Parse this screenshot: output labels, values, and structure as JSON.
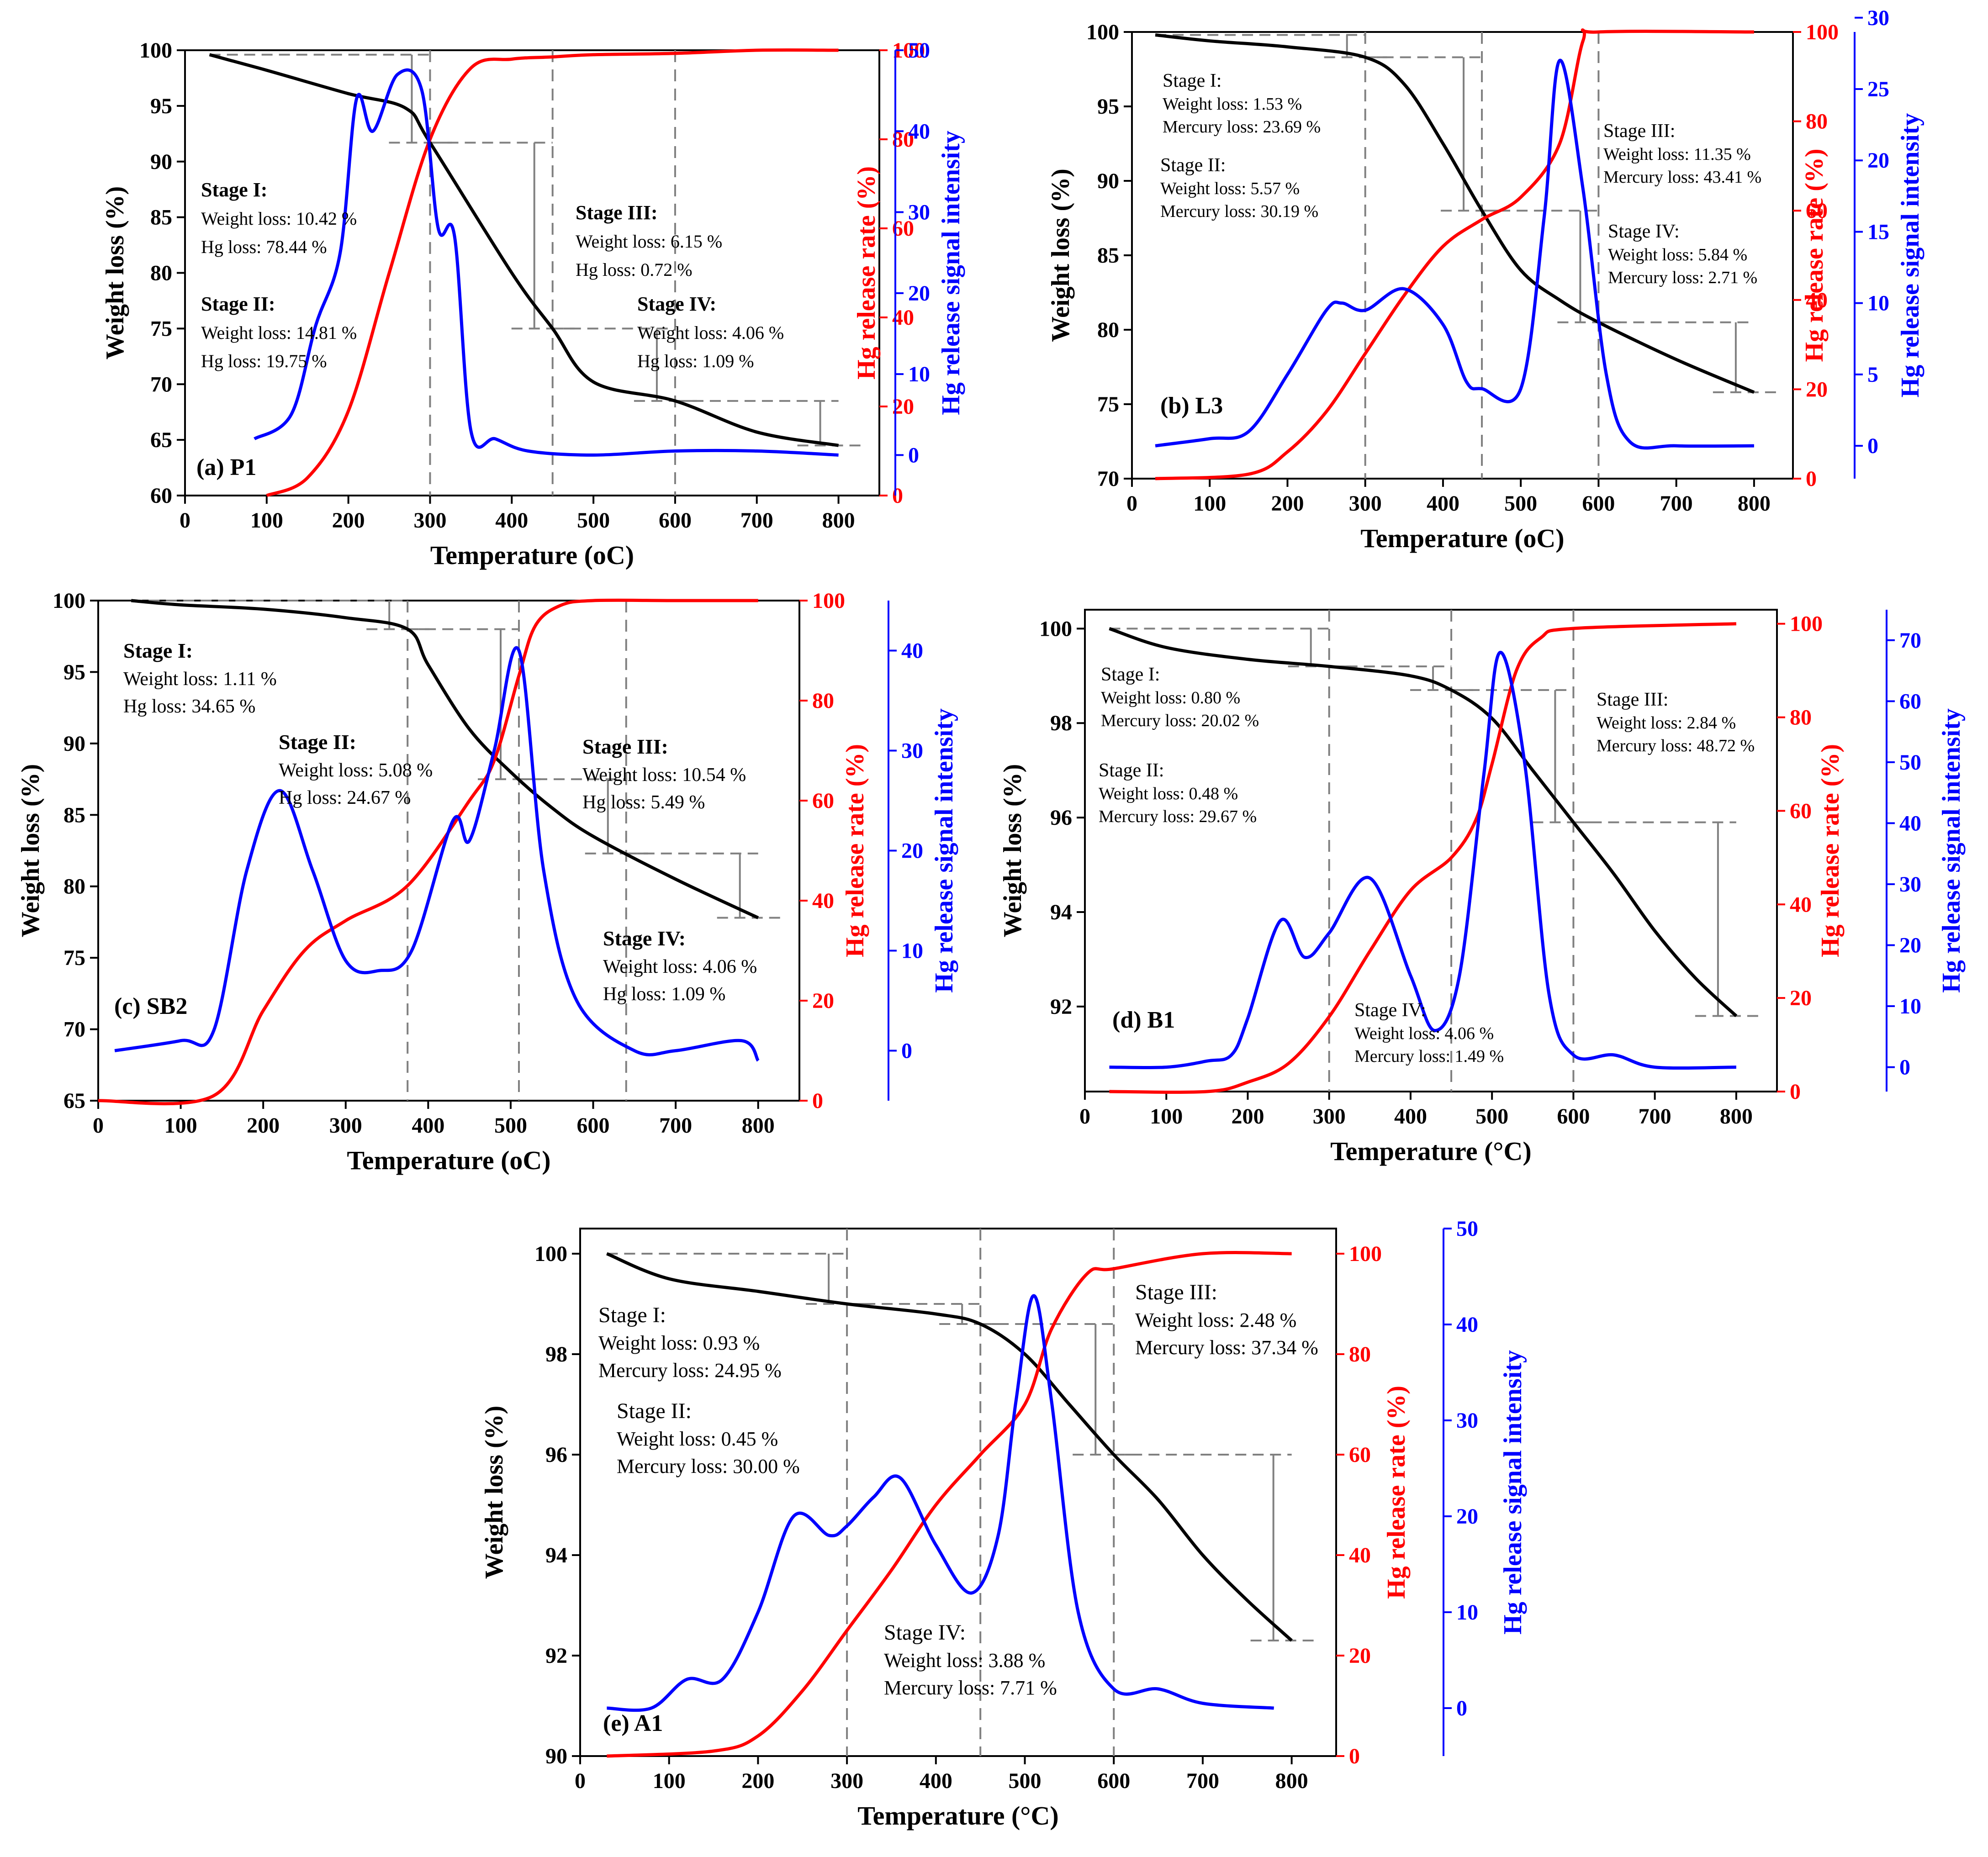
{
  "colors": {
    "weight": "#000000",
    "release": "#ff0000",
    "signal": "#0000ff",
    "guide": "#808080"
  },
  "common": {
    "xlabel": "Temperature (°C)",
    "ylabel_left": "Weight loss (%)",
    "ylabel_right1": "Hg release rate (%)",
    "ylabel_right2": "Hg release signal intensity"
  },
  "chart_data": [
    {
      "id": "P1",
      "type": "line",
      "panel_label": "(a) P1",
      "title": "",
      "xlabel": "Temperature (oC)",
      "xlim": [
        0,
        850
      ],
      "xticks": [
        0,
        100,
        200,
        300,
        400,
        500,
        600,
        700,
        800
      ],
      "ylim_weight": [
        60,
        100
      ],
      "yticks_weight": [
        60,
        65,
        70,
        75,
        80,
        85,
        90,
        95,
        100
      ],
      "ylim_release": [
        0,
        100
      ],
      "yticks_release": [
        0,
        20,
        40,
        60,
        80,
        100
      ],
      "ylim_signal": [
        -5,
        50
      ],
      "yticks_signal": [
        0,
        10,
        20,
        30,
        40,
        50
      ],
      "stage_boundaries": [
        300,
        450,
        600
      ],
      "series": [
        {
          "name": "Weight loss",
          "axis": "weight",
          "x": [
            30,
            100,
            200,
            270,
            300,
            400,
            450,
            500,
            600,
            700,
            800
          ],
          "y": [
            99.6,
            98.2,
            96.1,
            94.8,
            91.7,
            80.0,
            75.0,
            70.2,
            68.5,
            65.7,
            64.5
          ]
        },
        {
          "name": "Hg release rate",
          "axis": "release",
          "x": [
            100,
            150,
            200,
            250,
            300,
            350,
            400,
            450,
            500,
            600,
            700,
            800
          ],
          "y": [
            0,
            4,
            19,
            50,
            80,
            96,
            98,
            98.5,
            99,
            99.3,
            100,
            100
          ]
        },
        {
          "name": "Hg release signal",
          "axis": "signal",
          "x": [
            85,
            130,
            160,
            190,
            210,
            230,
            260,
            290,
            310,
            330,
            350,
            380,
            420,
            500,
            600,
            700,
            800
          ],
          "y": [
            2,
            5,
            16,
            25,
            44,
            40,
            47,
            45,
            28,
            27,
            3,
            2,
            0.5,
            0,
            0.5,
            0.5,
            0
          ]
        }
      ],
      "annotations": [
        {
          "lines": [
            "Stage I:",
            "Weight loss: 10.42 %",
            "Hg loss: 78.44 %"
          ]
        },
        {
          "lines": [
            "Stage II:",
            "Weight loss: 14.81 %",
            "Hg loss: 19.75 %"
          ]
        },
        {
          "lines": [
            "Stage III:",
            "Weight loss: 6.15 %",
            "Hg loss: 0.72 %"
          ]
        },
        {
          "lines": [
            "Stage IV:",
            "Weight loss: 4.06 %",
            "Hg loss: 1.09 %"
          ]
        }
      ]
    },
    {
      "id": "L3",
      "type": "line",
      "panel_label": "(b) L3",
      "title": "",
      "xlabel": "Temperature (oC)",
      "xlim": [
        0,
        850
      ],
      "xticks": [
        0,
        100,
        200,
        300,
        400,
        500,
        600,
        700,
        800
      ],
      "ylim_weight": [
        70,
        100
      ],
      "yticks_weight": [
        70,
        75,
        80,
        85,
        90,
        95,
        100
      ],
      "ylim_release": [
        0,
        100
      ],
      "yticks_release": [
        0,
        20,
        40,
        60,
        80,
        100
      ],
      "ylim_signal": [
        -2.3,
        29
      ],
      "yticks_signal": [
        0,
        5,
        10,
        15,
        20,
        25,
        30
      ],
      "stage_boundaries": [
        300,
        450,
        600
      ],
      "series": [
        {
          "name": "Weight loss",
          "axis": "weight",
          "x": [
            30,
            100,
            200,
            300,
            350,
            400,
            450,
            500,
            550,
            600,
            700,
            800
          ],
          "y": [
            99.8,
            99.4,
            99.0,
            98.3,
            96.5,
            92.5,
            88.0,
            84.0,
            82.0,
            80.5,
            78.0,
            75.8
          ]
        },
        {
          "name": "Hg release rate",
          "axis": "release",
          "x": [
            30,
            150,
            200,
            250,
            300,
            350,
            400,
            450,
            500,
            550,
            580,
            600,
            800
          ],
          "y": [
            0,
            1,
            6,
            15,
            28,
            41,
            52,
            58,
            63,
            75,
            98,
            100,
            100
          ]
        },
        {
          "name": "Hg release signal",
          "axis": "signal",
          "x": [
            30,
            100,
            150,
            200,
            250,
            270,
            300,
            350,
            400,
            430,
            450,
            500,
            530,
            550,
            580,
            610,
            640,
            700,
            800
          ],
          "y": [
            0,
            0.5,
            1,
            5,
            9.5,
            10,
            9.5,
            11,
            8.5,
            4.5,
            4,
            4,
            16,
            27,
            18,
            5,
            0.3,
            0,
            0
          ]
        }
      ],
      "annotations": [
        {
          "lines": [
            "Stage I:",
            "Weight loss: 1.53 %",
            "Mercury loss: 23.69 %"
          ]
        },
        {
          "lines": [
            "Stage II:",
            "Weight loss: 5.57 %",
            "Mercury loss: 30.19 %"
          ]
        },
        {
          "lines": [
            "Stage III:",
            "Weight loss: 11.35 %",
            "Mercury loss: 43.41 %"
          ]
        },
        {
          "lines": [
            "Stage IV:",
            "Weight loss: 5.84 %",
            "Mercury loss: 2.71 %"
          ]
        }
      ]
    },
    {
      "id": "SB2",
      "type": "line",
      "panel_label": "(c) SB2",
      "title": "",
      "xlabel": "Temperature (oC)",
      "xlim": [
        0,
        850
      ],
      "xticks": [
        0,
        100,
        200,
        300,
        400,
        500,
        600,
        700,
        800
      ],
      "ylim_weight": [
        65,
        100
      ],
      "yticks_weight": [
        65,
        70,
        75,
        80,
        85,
        90,
        95,
        100
      ],
      "ylim_release": [
        0,
        100
      ],
      "yticks_release": [
        0,
        20,
        40,
        60,
        80,
        100
      ],
      "ylim_signal": [
        -5,
        45
      ],
      "yticks_signal": [
        0,
        10,
        20,
        30,
        40
      ],
      "stage_boundaries": [
        375,
        510,
        640
      ],
      "series": [
        {
          "name": "Weight loss",
          "axis": "weight",
          "x": [
            40,
            100,
            200,
            300,
            375,
            400,
            450,
            500,
            550,
            600,
            700,
            800
          ],
          "y": [
            100,
            99.7,
            99.4,
            98.8,
            98.0,
            95.5,
            91.0,
            88.0,
            85.5,
            83.5,
            80.5,
            77.8
          ]
        },
        {
          "name": "Hg release rate",
          "axis": "release",
          "x": [
            0,
            140,
            200,
            250,
            300,
            375,
            450,
            480,
            510,
            530,
            560,
            600,
            700,
            800
          ],
          "y": [
            0,
            1,
            18,
            30,
            36,
            43,
            60,
            68,
            85,
            95,
            99,
            100,
            100,
            100
          ]
        },
        {
          "name": "Hg release signal",
          "axis": "signal",
          "x": [
            20,
            100,
            140,
            180,
            220,
            260,
            300,
            340,
            380,
            430,
            450,
            480,
            510,
            540,
            580,
            650,
            700,
            780,
            800
          ],
          "y": [
            0,
            1,
            2,
            18,
            26,
            18,
            9,
            8,
            10,
            23,
            21,
            30,
            40,
            18,
            5,
            0,
            0,
            1,
            -1
          ]
        }
      ],
      "annotations": [
        {
          "lines": [
            "Stage I:",
            "Weight loss: 1.11 %",
            "Hg loss: 34.65 %"
          ]
        },
        {
          "lines": [
            "Stage II:",
            "Weight loss: 5.08 %",
            "Hg loss: 24.67 %"
          ]
        },
        {
          "lines": [
            "Stage III:",
            "Weight loss: 10.54 %",
            "Hg loss: 5.49 %"
          ]
        },
        {
          "lines": [
            "Stage IV:",
            "Weight loss: 4.06 %",
            "Hg loss: 1.09 %"
          ]
        }
      ]
    },
    {
      "id": "B1",
      "type": "line",
      "panel_label": "(d) B1",
      "title": "",
      "xlabel": "Temperature (°C)",
      "xlim": [
        0,
        850
      ],
      "xticks": [
        0,
        100,
        200,
        300,
        400,
        500,
        600,
        700,
        800
      ],
      "ylim_weight": [
        90.2,
        100.4
      ],
      "yticks_weight": [
        92,
        94,
        96,
        98,
        100
      ],
      "ylim_release": [
        0,
        103
      ],
      "yticks_release": [
        0,
        20,
        40,
        60,
        80,
        100
      ],
      "ylim_signal": [
        -4,
        75
      ],
      "yticks_signal": [
        0,
        10,
        20,
        30,
        40,
        50,
        60,
        70
      ],
      "stage_boundaries": [
        300,
        450,
        600
      ],
      "series": [
        {
          "name": "Weight loss",
          "axis": "weight",
          "x": [
            30,
            100,
            200,
            300,
            400,
            450,
            500,
            550,
            600,
            650,
            700,
            750,
            800
          ],
          "y": [
            100,
            99.6,
            99.35,
            99.2,
            99.0,
            98.7,
            98.1,
            97.0,
            95.9,
            94.8,
            93.6,
            92.6,
            91.8
          ]
        },
        {
          "name": "Hg release rate",
          "axis": "release",
          "x": [
            30,
            150,
            200,
            250,
            300,
            350,
            400,
            450,
            480,
            500,
            530,
            560,
            600,
            800
          ],
          "y": [
            0,
            0,
            2,
            6,
            16,
            30,
            43,
            50,
            58,
            70,
            90,
            97,
            99,
            100
          ]
        },
        {
          "name": "Hg release signal",
          "axis": "signal",
          "x": [
            30,
            100,
            150,
            180,
            200,
            240,
            270,
            300,
            350,
            400,
            430,
            460,
            490,
            510,
            540,
            570,
            600,
            650,
            700,
            800
          ],
          "y": [
            0,
            0,
            1,
            2,
            8,
            24,
            18,
            22,
            31,
            15,
            6,
            15,
            48,
            68,
            50,
            12,
            2,
            2,
            0,
            0
          ]
        }
      ],
      "annotations": [
        {
          "lines": [
            "Stage I:",
            "Weight loss: 0.80 %",
            "Mercury loss: 20.02 %"
          ]
        },
        {
          "lines": [
            "Stage II:",
            "Weight loss: 0.48 %",
            "Mercury loss: 29.67 %"
          ]
        },
        {
          "lines": [
            "Stage III:",
            "Weight loss: 2.84 %",
            "Mercury loss: 48.72 %"
          ]
        },
        {
          "lines": [
            "Stage IV:",
            "Weight loss: 4.06 %",
            "Mercury loss: 1.49 %"
          ]
        }
      ]
    },
    {
      "id": "A1",
      "type": "line",
      "panel_label": "(e) A1",
      "title": "",
      "xlabel": "Temperature (°C)",
      "xlim": [
        0,
        850
      ],
      "xticks": [
        0,
        100,
        200,
        300,
        400,
        500,
        600,
        700,
        800
      ],
      "ylim_weight": [
        90,
        100.5
      ],
      "yticks_weight": [
        90,
        92,
        94,
        96,
        98,
        100
      ],
      "ylim_release": [
        0,
        105
      ],
      "yticks_release": [
        0,
        20,
        40,
        60,
        80,
        100
      ],
      "ylim_signal": [
        -5,
        50
      ],
      "yticks_signal": [
        0,
        10,
        20,
        30,
        40,
        50
      ],
      "stage_boundaries": [
        300,
        450,
        600
      ],
      "series": [
        {
          "name": "Weight loss",
          "axis": "weight",
          "x": [
            30,
            100,
            200,
            300,
            400,
            450,
            500,
            550,
            600,
            650,
            700,
            750,
            800
          ],
          "y": [
            100,
            99.5,
            99.25,
            99.0,
            98.8,
            98.6,
            98.0,
            97.0,
            96.0,
            95.1,
            94.0,
            93.1,
            92.3
          ]
        },
        {
          "name": "Hg release rate",
          "axis": "release",
          "x": [
            30,
            150,
            200,
            250,
            300,
            350,
            400,
            450,
            500,
            530,
            570,
            600,
            700,
            800
          ],
          "y": [
            0,
            1,
            4,
            13,
            25,
            37,
            50,
            60,
            70,
            85,
            96,
            97,
            100,
            100
          ]
        },
        {
          "name": "Hg release signal",
          "axis": "signal",
          "x": [
            30,
            80,
            120,
            160,
            200,
            240,
            280,
            300,
            330,
            360,
            400,
            440,
            470,
            490,
            510,
            530,
            560,
            600,
            650,
            700,
            780
          ],
          "y": [
            0,
            0,
            3,
            3,
            10,
            20,
            18,
            19,
            22,
            24,
            17,
            12,
            18,
            32,
            43,
            32,
            10,
            2,
            2,
            0.5,
            0
          ]
        }
      ],
      "annotations": [
        {
          "lines": [
            "Stage I:",
            "Weight loss: 0.93 %",
            "Mercury loss: 24.95 %"
          ]
        },
        {
          "lines": [
            "Stage II:",
            "Weight loss: 0.45 %",
            "Mercury loss: 30.00 %"
          ]
        },
        {
          "lines": [
            "Stage III:",
            "Weight loss: 2.48 %",
            "Mercury loss: 37.34 %"
          ]
        },
        {
          "lines": [
            "Stage IV:",
            "Weight loss: 3.88 %",
            "Mercury loss: 7.71 %"
          ]
        }
      ]
    }
  ]
}
